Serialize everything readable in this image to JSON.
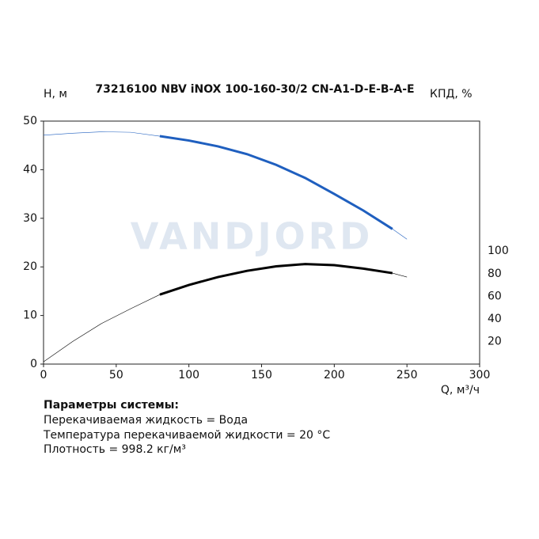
{
  "chart_data": {
    "type": "line",
    "title": "73216100 NBV iNOX 100-160-30/2 CN-A1-D-E-B-A-E",
    "y_label": "H, м",
    "y2_label": "КПД, %",
    "x_label": "Q, м³/ч",
    "watermark": "VANDJORD",
    "x": [
      0,
      20,
      40,
      60,
      80,
      100,
      120,
      140,
      160,
      180,
      200,
      220,
      240,
      250
    ],
    "xlim": [
      0,
      300
    ],
    "xticks": [
      0,
      50,
      100,
      150,
      200,
      250,
      300
    ],
    "ylim": [
      0,
      50
    ],
    "yticks": [
      0,
      10,
      20,
      30,
      40,
      50
    ],
    "y2lim": [
      0,
      215
    ],
    "y2ticks": [
      20,
      40,
      60,
      80,
      100
    ],
    "working_range": [
      80,
      240
    ],
    "series": [
      {
        "color": "#1f5fbf",
        "values": [
          47.1,
          47.5,
          47.8,
          47.7,
          46.9,
          46.0,
          44.8,
          43.2,
          41.0,
          38.3,
          35.0,
          31.6,
          27.8,
          25.7
        ]
      },
      {
        "color": "#000000",
        "axis": "y2",
        "values": [
          2,
          20,
          36,
          49,
          61.5,
          70,
          77,
          82.5,
          86.5,
          88.5,
          87.5,
          84.5,
          80.5,
          77
        ]
      }
    ]
  },
  "parameters": {
    "heading": "Параметры системы:",
    "lines": [
      "Перекачиваемая жидкость = Вода",
      "Температура перекачиваемой жидкости = 20 °C",
      "Плотность = 998.2 кг/м³"
    ]
  }
}
